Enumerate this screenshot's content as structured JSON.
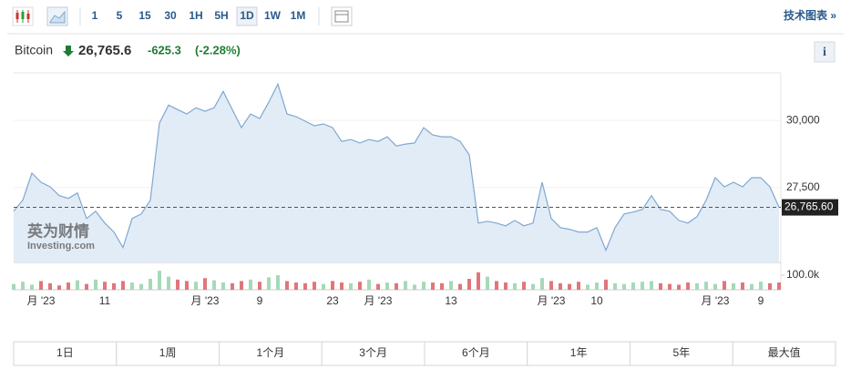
{
  "toolbar": {
    "intervals": [
      "1",
      "5",
      "15",
      "30",
      "1H",
      "5H",
      "1D",
      "1W",
      "1M"
    ],
    "selected_interval": 6,
    "link": "技术图表 »"
  },
  "header": {
    "name": "Bitcoin",
    "price": "26,765.6",
    "change": "-625.3",
    "change_pct": "(-2.28%)",
    "info": "i"
  },
  "watermark": [
    "英为财情",
    "Investing.com"
  ],
  "ranges": [
    "1日",
    "1周",
    "1个月",
    "3个月",
    "6个月",
    "1年",
    "5年",
    "最大值"
  ],
  "chart_data": [
    {
      "type": "line",
      "color": "#7fa8d1",
      "fill": "#e2ecf7",
      "categories": [
        null,
        null,
        null,
        "月 '23",
        null,
        null,
        null,
        null,
        null,
        null,
        "11",
        null,
        null,
        null,
        null,
        null,
        null,
        null,
        null,
        null,
        null,
        "月 '23",
        null,
        null,
        null,
        null,
        null,
        "9",
        null,
        null,
        null,
        null,
        null,
        null,
        null,
        "23",
        null,
        null,
        null,
        null,
        "月 '23",
        null,
        null,
        null,
        null,
        null,
        null,
        null,
        "13",
        null,
        null,
        null,
        null,
        null,
        null,
        null,
        null,
        null,
        null,
        "月 '23",
        null,
        null,
        null,
        null,
        "10",
        null,
        null,
        null,
        null,
        null,
        null,
        null,
        null,
        null,
        null,
        null,
        null,
        "月 '23",
        null,
        null,
        null,
        null,
        "9",
        null,
        null
      ],
      "values": [
        26620,
        27030,
        28040,
        27700,
        27530,
        27200,
        27100,
        27300,
        26350,
        26620,
        26180,
        25850,
        25270,
        26350,
        26520,
        27030,
        29900,
        30570,
        30400,
        30240,
        30470,
        30340,
        30470,
        31080,
        30400,
        29730,
        30240,
        30070,
        30680,
        31350,
        30240,
        30140,
        29970,
        29800,
        29870,
        29730,
        29220,
        29290,
        29160,
        29290,
        29220,
        29390,
        29050,
        29120,
        29160,
        29730,
        29460,
        29390,
        29390,
        29220,
        28720,
        26180,
        26250,
        26180,
        26080,
        26280,
        26080,
        26180,
        27700,
        26350,
        26010,
        25950,
        25850,
        25850,
        26010,
        25170,
        26010,
        26520,
        26590,
        26690,
        27200,
        26690,
        26620,
        26280,
        26180,
        26420,
        27030,
        27870,
        27530,
        27700,
        27530,
        27870,
        27870,
        27530,
        26765.6
      ],
      "ylim": [
        24750,
        31700
      ],
      "yticks": [
        {
          "value": 30000,
          "label": "30,000"
        },
        {
          "value": 27500,
          "label": "27,500"
        }
      ],
      "last_price": 26765.6,
      "last_label": "26,765.60"
    },
    {
      "type": "bar",
      "up_color": "#a5d9b8",
      "down_color": "#e0767c",
      "values": [
        40,
        55,
        35,
        60,
        45,
        30,
        50,
        65,
        40,
        70,
        55,
        45,
        60,
        50,
        40,
        75,
        130,
        90,
        70,
        60,
        55,
        80,
        65,
        50,
        45,
        60,
        70,
        55,
        85,
        100,
        60,
        50,
        45,
        55,
        40,
        60,
        50,
        45,
        55,
        70,
        40,
        50,
        45,
        60,
        35,
        55,
        50,
        45,
        60,
        40,
        75,
        120,
        90,
        60,
        50,
        45,
        55,
        40,
        80,
        60,
        45,
        40,
        55,
        35,
        50,
        70,
        45,
        40,
        50,
        55,
        60,
        45,
        40,
        35,
        50,
        45,
        55,
        40,
        60,
        45,
        50,
        40,
        55,
        45,
        50
      ],
      "ylim": [
        0,
        175
      ],
      "yticks": [
        {
          "value": 100,
          "label": "100.0k"
        }
      ]
    }
  ]
}
